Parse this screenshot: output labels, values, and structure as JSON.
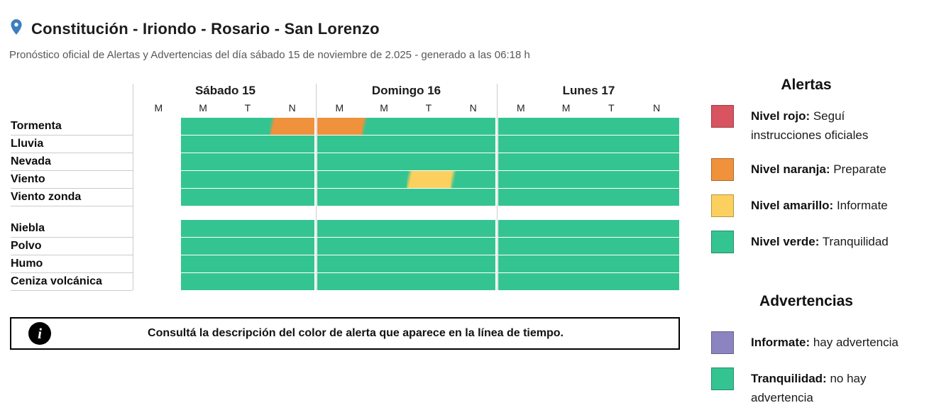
{
  "header": {
    "location_title": "Constitución - Iriondo - Rosario - San Lorenzo",
    "subtitle": "Pronóstico oficial de Alertas y Advertencias del día sábado 15 de noviembre de 2.025 - generado a las 06:18 h"
  },
  "colors": {
    "green": "#34c491",
    "orange": "#f0913c",
    "yellow": "#fbd05e",
    "red": "#d85460",
    "purple": "#8b84c1",
    "pin_blue": "#3b7ec0"
  },
  "timeline": {
    "days": [
      {
        "label": "Sábado 15",
        "periods": [
          "M",
          "M",
          "T",
          "N"
        ]
      },
      {
        "label": "Domingo 16",
        "periods": [
          "M",
          "M",
          "T",
          "N"
        ]
      },
      {
        "label": "Lunes 17",
        "periods": [
          "M",
          "M",
          "T",
          "N"
        ]
      }
    ],
    "row_groups": [
      {
        "name": "alertas",
        "rows": [
          {
            "label": "Tormenta",
            "cells": [
              "none",
              "green",
              "green",
              "orange",
              "orange",
              "green",
              "green",
              "green",
              "green",
              "green",
              "green",
              "green"
            ]
          },
          {
            "label": "Lluvia",
            "cells": [
              "none",
              "green",
              "green",
              "green",
              "green",
              "green",
              "green",
              "green",
              "green",
              "green",
              "green",
              "green"
            ]
          },
          {
            "label": "Nevada",
            "cells": [
              "none",
              "green",
              "green",
              "green",
              "green",
              "green",
              "green",
              "green",
              "green",
              "green",
              "green",
              "green"
            ]
          },
          {
            "label": "Viento",
            "cells": [
              "none",
              "green",
              "green",
              "green",
              "green",
              "green",
              "yellow",
              "green",
              "green",
              "green",
              "green",
              "green"
            ]
          },
          {
            "label": "Viento zonda",
            "cells": [
              "none",
              "green",
              "green",
              "green",
              "green",
              "green",
              "green",
              "green",
              "green",
              "green",
              "green",
              "green"
            ]
          }
        ]
      },
      {
        "name": "advertencias",
        "rows": [
          {
            "label": "Niebla",
            "cells": [
              "none",
              "green",
              "green",
              "green",
              "green",
              "green",
              "green",
              "green",
              "green",
              "green",
              "green",
              "green"
            ]
          },
          {
            "label": "Polvo",
            "cells": [
              "none",
              "green",
              "green",
              "green",
              "green",
              "green",
              "green",
              "green",
              "green",
              "green",
              "green",
              "green"
            ]
          },
          {
            "label": "Humo",
            "cells": [
              "none",
              "green",
              "green",
              "green",
              "green",
              "green",
              "green",
              "green",
              "green",
              "green",
              "green",
              "green"
            ]
          },
          {
            "label": "Ceniza volcánica",
            "cells": [
              "none",
              "green",
              "green",
              "green",
              "green",
              "green",
              "green",
              "green",
              "green",
              "green",
              "green",
              "green"
            ]
          }
        ]
      }
    ]
  },
  "info_banner": {
    "icon": "info-icon",
    "text": "Consultá la descripción del color de alerta que aparece en la línea de tiempo."
  },
  "legend": {
    "alertas": {
      "title": "Alertas",
      "items": [
        {
          "color": "red",
          "label": "Nivel rojo:",
          "description": "Seguí instrucciones oficiales"
        },
        {
          "color": "orange",
          "label": "Nivel naranja:",
          "description": "Preparate"
        },
        {
          "color": "yellow",
          "label": "Nivel amarillo:",
          "description": "Informate"
        },
        {
          "color": "green",
          "label": "Nivel verde:",
          "description": "Tranquilidad"
        }
      ]
    },
    "advertencias": {
      "title": "Advertencias",
      "items": [
        {
          "color": "purple",
          "label": "Informate:",
          "description": "hay advertencia"
        },
        {
          "color": "green",
          "label": "Tranquilidad:",
          "description": "no hay advertencia"
        }
      ]
    }
  }
}
